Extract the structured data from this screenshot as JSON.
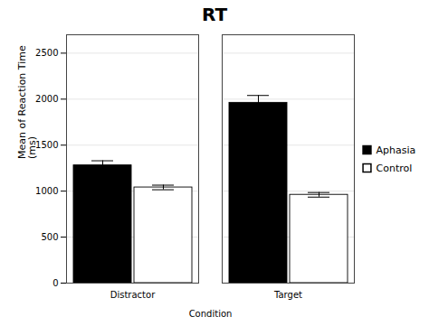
{
  "chart_data": {
    "type": "bar",
    "title": "RT",
    "xlabel": "Condition",
    "ylabel": "Mean of Reaction Time\n(ms)",
    "categories": [
      "Distractor",
      "Target"
    ],
    "series": [
      {
        "name": "Aphasia",
        "color": "#000000",
        "values": [
          1280,
          1960
        ],
        "errors": [
          50,
          80
        ]
      },
      {
        "name": "Control",
        "color": "#ffffff",
        "values": [
          1040,
          960
        ],
        "errors": [
          25,
          25
        ]
      }
    ],
    "ylim": [
      0,
      2700
    ],
    "yticks": [
      0,
      500,
      1000,
      1500,
      2000,
      2500
    ],
    "grid": true,
    "legend": "right"
  }
}
